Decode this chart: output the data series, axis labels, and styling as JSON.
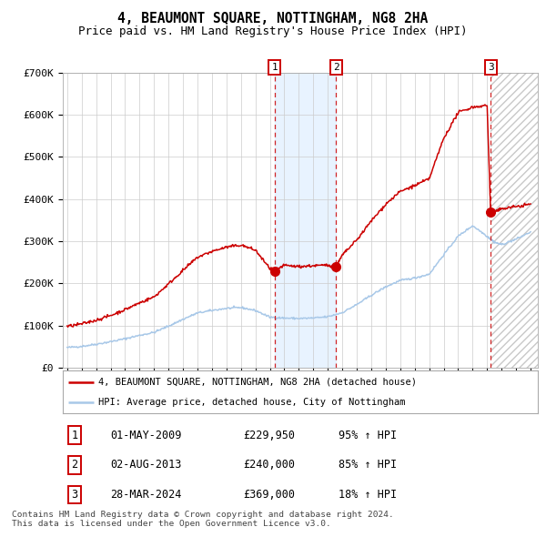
{
  "title": "4, BEAUMONT SQUARE, NOTTINGHAM, NG8 2HA",
  "subtitle": "Price paid vs. HM Land Registry's House Price Index (HPI)",
  "title_fontsize": 10.5,
  "subtitle_fontsize": 9,
  "ylim": [
    0,
    700000
  ],
  "yticks": [
    0,
    100000,
    200000,
    300000,
    400000,
    500000,
    600000,
    700000
  ],
  "ytick_labels": [
    "£0",
    "£100K",
    "£200K",
    "£300K",
    "£400K",
    "£500K",
    "£600K",
    "£700K"
  ],
  "xlim_start": 1994.7,
  "xlim_end": 2027.5,
  "background_color": "#ffffff",
  "grid_color": "#cccccc",
  "hpi_line_color": "#a8c8e8",
  "price_line_color": "#cc0000",
  "marker_color": "#cc0000",
  "purchase_dates": [
    2009.33,
    2013.58,
    2024.24
  ],
  "purchase_prices": [
    229950,
    240000,
    369000
  ],
  "purchase_labels": [
    "1",
    "2",
    "3"
  ],
  "vline_color": "#cc0000",
  "shade_color": "#ddeeff",
  "hatch_region_start": 2024.24,
  "legend_line1": "4, BEAUMONT SQUARE, NOTTINGHAM, NG8 2HA (detached house)",
  "legend_line2": "HPI: Average price, detached house, City of Nottingham",
  "table_entries": [
    {
      "label": "1",
      "date": "01-MAY-2009",
      "price": "£229,950",
      "change": "95% ↑ HPI"
    },
    {
      "label": "2",
      "date": "02-AUG-2013",
      "price": "£240,000",
      "change": "85% ↑ HPI"
    },
    {
      "label": "3",
      "date": "28-MAR-2024",
      "price": "£369,000",
      "change": "18% ↑ HPI"
    }
  ],
  "footer": "Contains HM Land Registry data © Crown copyright and database right 2024.\nThis data is licensed under the Open Government Licence v3.0."
}
